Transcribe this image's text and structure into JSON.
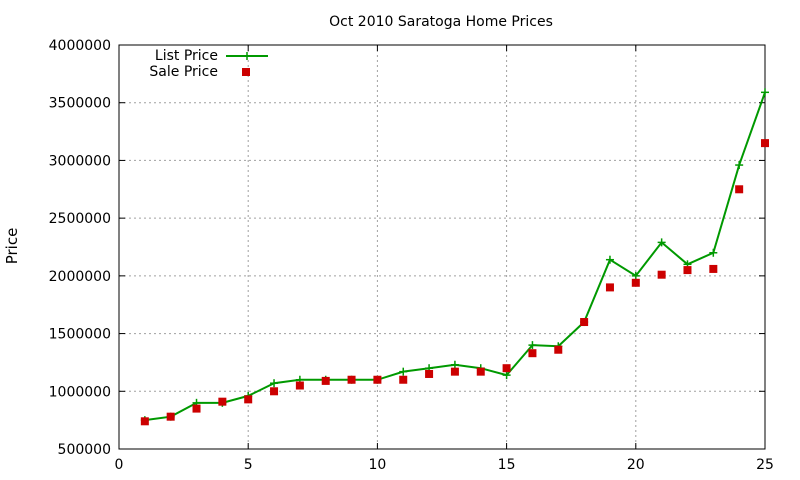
{
  "chart_data": {
    "type": "line",
    "title": "Oct 2010 Saratoga Home Prices",
    "xlabel": "",
    "ylabel": "Price",
    "xlim": [
      0,
      25
    ],
    "ylim": [
      500000,
      4000000
    ],
    "x_ticks": [
      0,
      5,
      10,
      15,
      20,
      25
    ],
    "y_ticks": [
      500000,
      1000000,
      1500000,
      2000000,
      2500000,
      3000000,
      3500000,
      4000000
    ],
    "grid": true,
    "legend_position": "top-left",
    "series": [
      {
        "name": "List Price",
        "style": "line-with-plus-markers",
        "color": "#009900",
        "x": [
          1,
          2,
          3,
          4,
          5,
          6,
          7,
          8,
          9,
          10,
          11,
          12,
          13,
          14,
          15,
          16,
          17,
          18,
          19,
          20,
          21,
          22,
          23,
          24,
          25
        ],
        "values": [
          750000,
          780000,
          900000,
          900000,
          960000,
          1070000,
          1100000,
          1100000,
          1100000,
          1100000,
          1170000,
          1200000,
          1230000,
          1200000,
          1140000,
          1400000,
          1390000,
          1600000,
          2140000,
          2000000,
          2290000,
          2100000,
          2200000,
          2960000,
          3590000
        ]
      },
      {
        "name": "Sale Price",
        "style": "square-markers",
        "color": "#cc0000",
        "x": [
          1,
          2,
          3,
          4,
          5,
          6,
          7,
          8,
          9,
          10,
          11,
          12,
          13,
          14,
          15,
          16,
          17,
          18,
          19,
          20,
          21,
          22,
          23,
          24,
          25
        ],
        "values": [
          740000,
          780000,
          850000,
          910000,
          930000,
          1000000,
          1050000,
          1090000,
          1100000,
          1100000,
          1100000,
          1150000,
          1170000,
          1170000,
          1200000,
          1330000,
          1360000,
          1600000,
          1900000,
          1940000,
          2010000,
          2050000,
          2060000,
          2750000,
          3150000
        ]
      }
    ]
  }
}
